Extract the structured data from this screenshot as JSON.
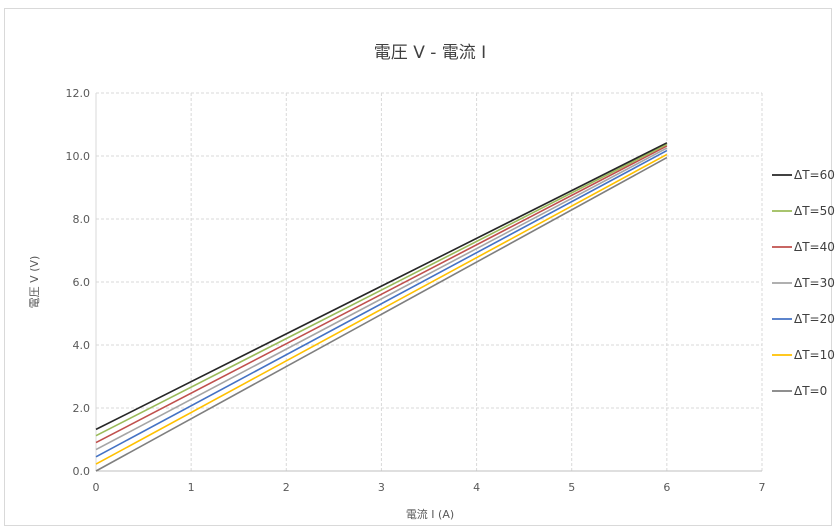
{
  "chart_data": {
    "type": "line",
    "title": "電圧 V - 電流 I",
    "xlabel": "電流 I (A)",
    "ylabel": "電圧 V (V)",
    "xlim": [
      0,
      7
    ],
    "ylim": [
      0,
      12
    ],
    "xticks": [
      0,
      1,
      2,
      3,
      4,
      5,
      6,
      7
    ],
    "xtick_labels": [
      "0",
      "1",
      "2",
      "3",
      "4",
      "5",
      "6",
      "7"
    ],
    "yticks": [
      0,
      2,
      4,
      6,
      8,
      10,
      12
    ],
    "ytick_labels": [
      "0.0",
      "2.0",
      "4.0",
      "6.0",
      "8.0",
      "10.0",
      "12.0"
    ],
    "grid": true,
    "legend_position": "right",
    "series": [
      {
        "name": "ΔT=60",
        "color": "#262626",
        "x": [
          0,
          6
        ],
        "y": [
          1.32,
          10.42
        ]
      },
      {
        "name": "ΔT=50",
        "color": "#9bbb59",
        "x": [
          0,
          6
        ],
        "y": [
          1.12,
          10.37
        ]
      },
      {
        "name": "ΔT=40",
        "color": "#c0504d",
        "x": [
          0,
          6
        ],
        "y": [
          0.9,
          10.32
        ]
      },
      {
        "name": "ΔT=30",
        "color": "#a5a5a5",
        "x": [
          0,
          6
        ],
        "y": [
          0.68,
          10.25
        ]
      },
      {
        "name": "ΔT=20",
        "color": "#4472c4",
        "x": [
          0,
          6
        ],
        "y": [
          0.45,
          10.17
        ]
      },
      {
        "name": "ΔT=10",
        "color": "#ffc000",
        "x": [
          0,
          6
        ],
        "y": [
          0.22,
          10.05
        ]
      },
      {
        "name": "ΔT=0",
        "color": "#7f7f7f",
        "x": [
          0,
          6
        ],
        "y": [
          0.0,
          9.95
        ]
      }
    ]
  }
}
